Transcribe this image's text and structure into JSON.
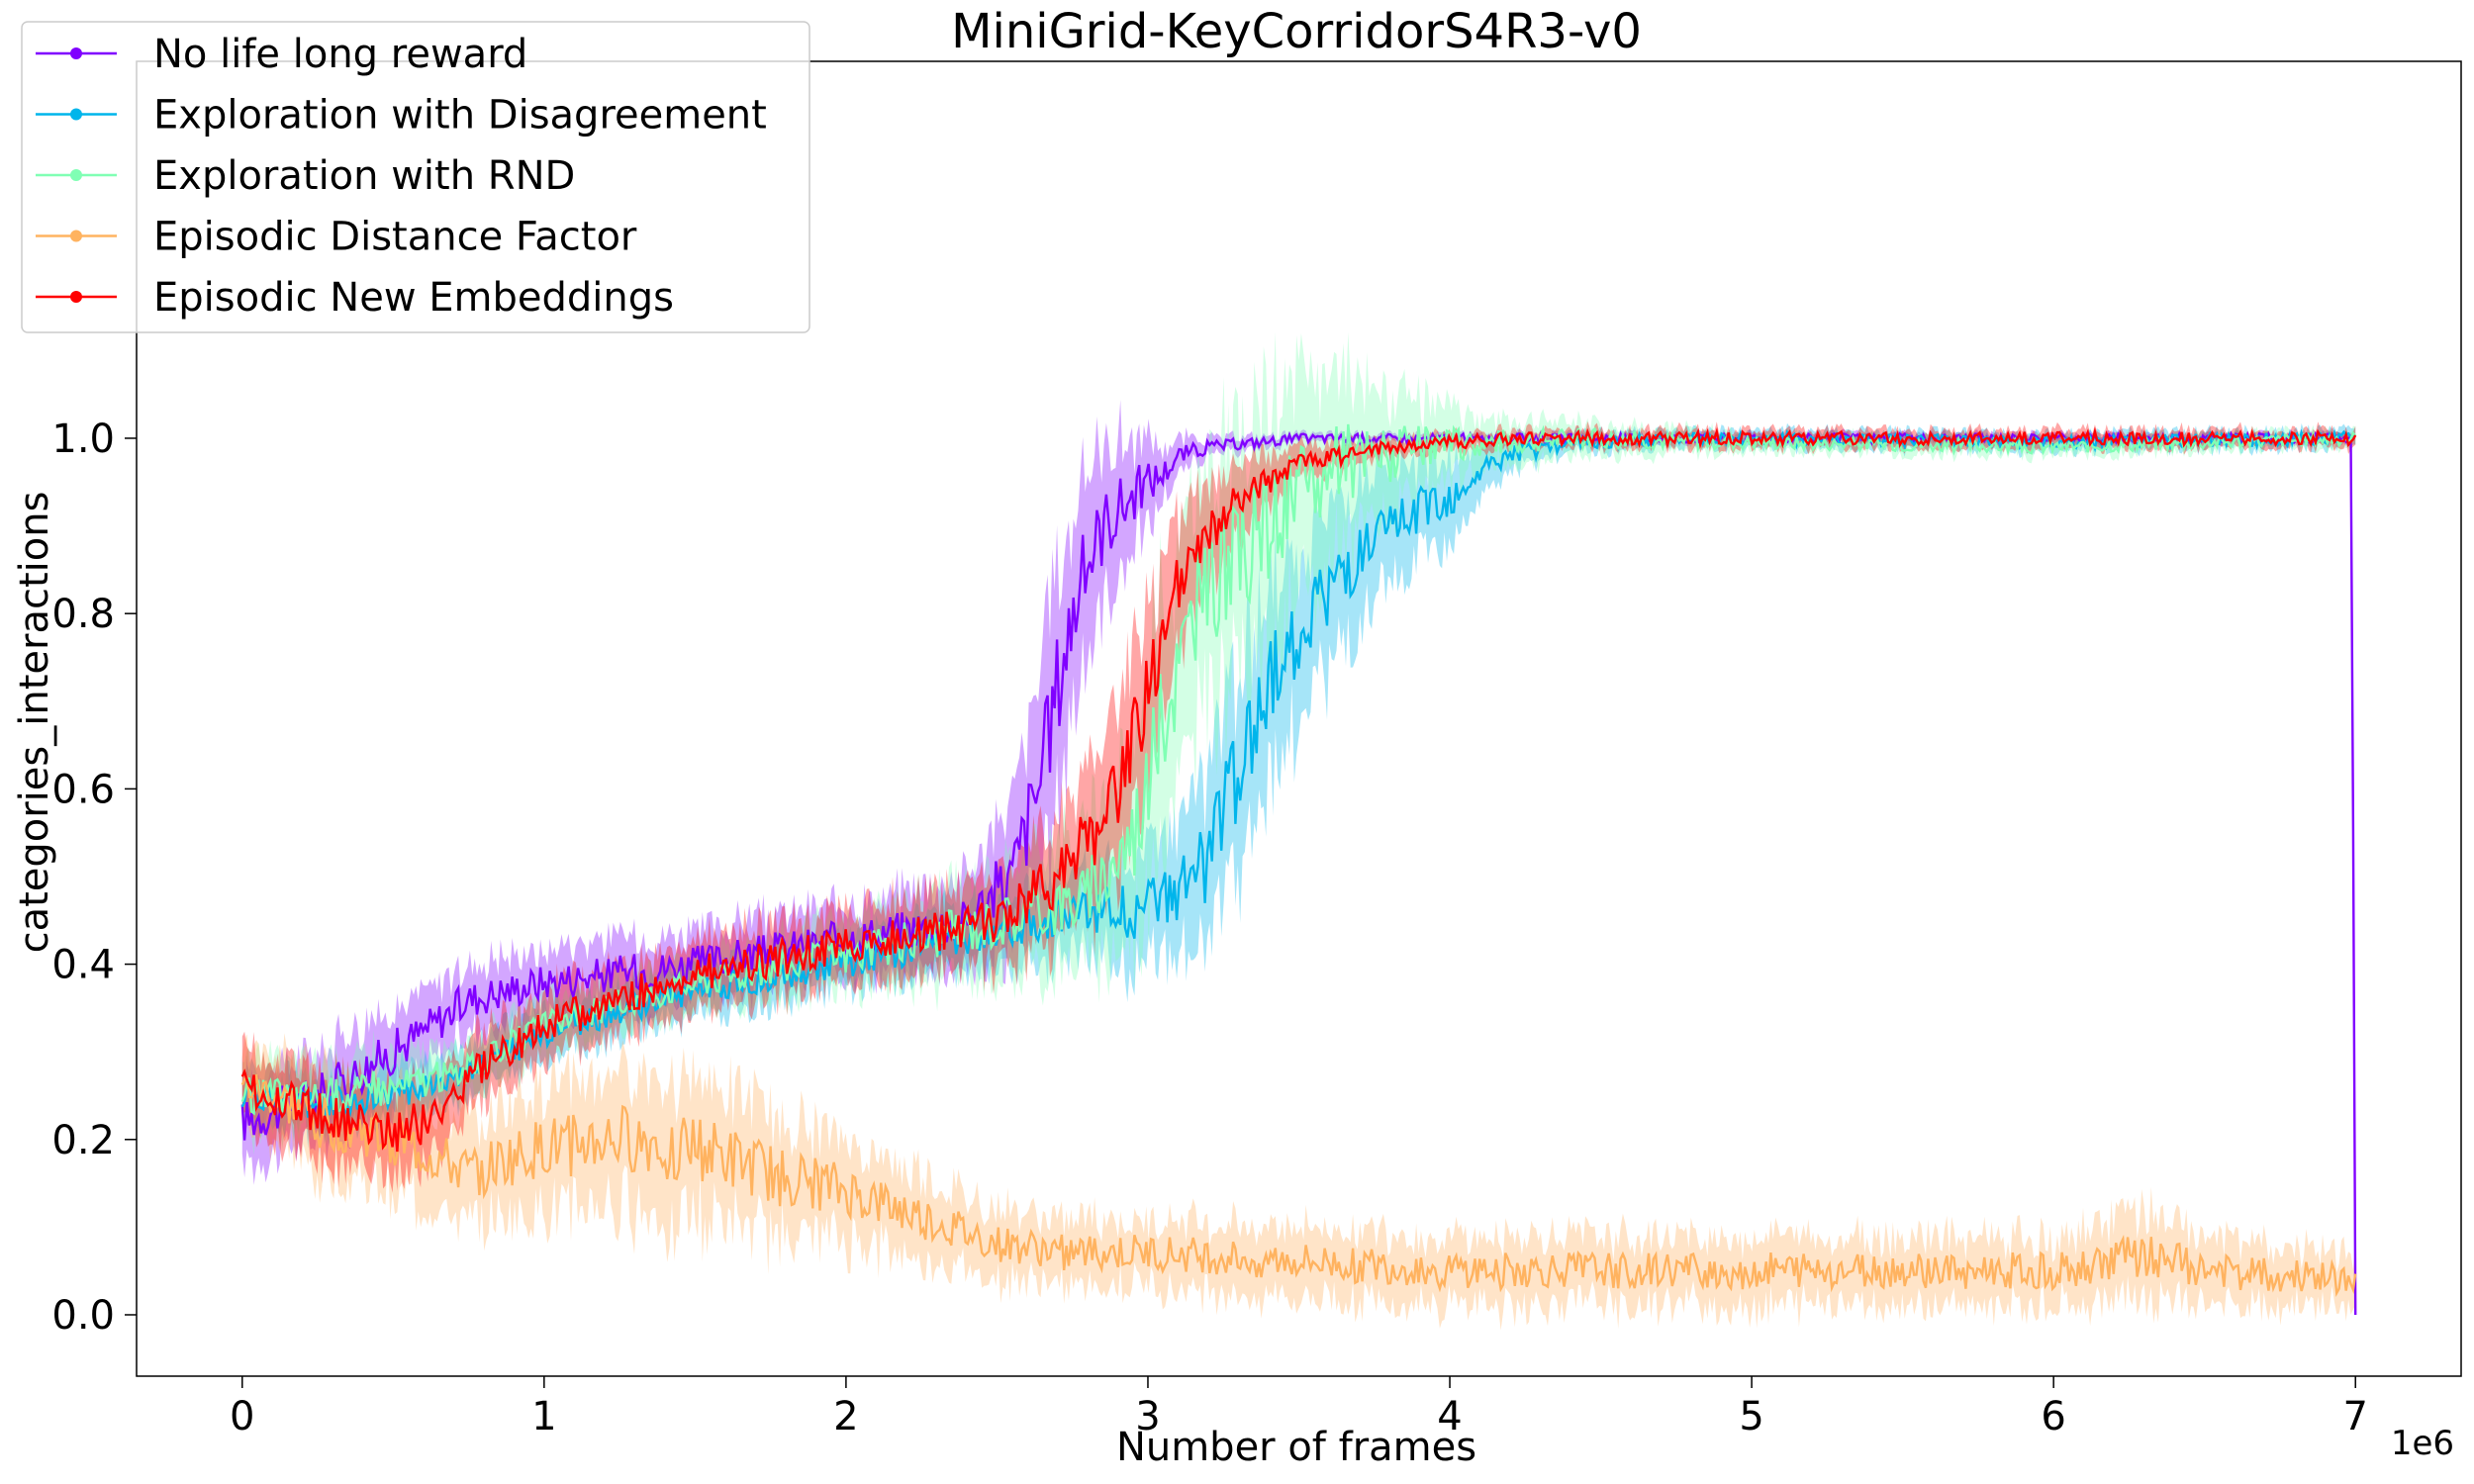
{
  "chart_data": {
    "type": "line",
    "title": "MiniGrid-KeyCorridorS4R3-v0",
    "xlabel": "Number of frames",
    "ylabel": "categories_interactions",
    "x_offset_label": "1e6",
    "xlim": [
      -0.35,
      7.35
    ],
    "ylim": [
      -0.07,
      1.43
    ],
    "x_ticks": [
      0,
      1,
      2,
      3,
      4,
      5,
      6,
      7
    ],
    "x_tick_labels": [
      "0",
      "1",
      "2",
      "3",
      "4",
      "5",
      "6",
      "7"
    ],
    "y_ticks": [
      0.0,
      0.2,
      0.4,
      0.6,
      0.8,
      1.0
    ],
    "y_tick_labels": [
      "0.0",
      "0.2",
      "0.4",
      "0.6",
      "0.8",
      "1.0"
    ],
    "grid": false,
    "legend_position": "top-left",
    "x_unit": "millions of frames",
    "series": [
      {
        "name": "No life long reward",
        "color": "#8000ff",
        "x": [
          0,
          0.25,
          0.5,
          0.75,
          1.0,
          1.5,
          2.0,
          2.4,
          2.55,
          2.65,
          2.7,
          2.75,
          2.8,
          2.85,
          2.9,
          3.0,
          3.05,
          3.1,
          3.2,
          3.5,
          4.0,
          5.0,
          6.0,
          6.99,
          6.995,
          7.0
        ],
        "values": [
          0.22,
          0.25,
          0.3,
          0.36,
          0.38,
          0.4,
          0.43,
          0.45,
          0.5,
          0.62,
          0.72,
          0.8,
          0.86,
          0.9,
          0.92,
          0.95,
          0.96,
          0.98,
          0.99,
          1.0,
          1.0,
          1.0,
          1.0,
          1.0,
          0.0,
          0.0
        ],
        "band": [
          0.05,
          0.05,
          0.05,
          0.04,
          0.04,
          0.04,
          0.04,
          0.05,
          0.09,
          0.12,
          0.14,
          0.12,
          0.1,
          0.09,
          0.08,
          0.05,
          0.03,
          0.02,
          0.01,
          0.005,
          0.005,
          0.005,
          0.005,
          0.005,
          0,
          0
        ]
      },
      {
        "name": "Exploration with Disagreement",
        "color": "#00b5eb",
        "x": [
          0,
          0.25,
          0.5,
          0.75,
          1.0,
          1.5,
          2.0,
          2.5,
          2.8,
          3.0,
          3.1,
          3.2,
          3.3,
          3.4,
          3.5,
          3.6,
          3.7,
          3.8,
          3.9,
          4.0,
          4.1,
          4.2,
          4.4,
          5.0,
          6.0,
          7.0
        ],
        "values": [
          0.25,
          0.24,
          0.25,
          0.28,
          0.32,
          0.37,
          0.4,
          0.44,
          0.46,
          0.46,
          0.48,
          0.52,
          0.62,
          0.72,
          0.78,
          0.83,
          0.86,
          0.89,
          0.92,
          0.93,
          0.96,
          0.98,
          0.995,
          1.0,
          0.995,
          1.0
        ],
        "band": [
          0.03,
          0.03,
          0.03,
          0.03,
          0.03,
          0.03,
          0.03,
          0.04,
          0.05,
          0.07,
          0.08,
          0.1,
          0.12,
          0.11,
          0.1,
          0.09,
          0.08,
          0.07,
          0.06,
          0.05,
          0.03,
          0.02,
          0.01,
          0.01,
          0.01,
          0.01
        ]
      },
      {
        "name": "Exploration with RND",
        "color": "#80ffb4",
        "x": [
          0,
          0.25,
          0.5,
          0.75,
          1.0,
          1.5,
          2.0,
          2.5,
          2.8,
          2.95,
          3.05,
          3.15,
          3.25,
          3.35,
          3.45,
          3.55,
          3.65,
          3.75,
          3.9,
          4.1,
          4.4,
          5.0,
          6.0,
          7.0
        ],
        "values": [
          0.25,
          0.25,
          0.26,
          0.28,
          0.33,
          0.38,
          0.41,
          0.45,
          0.48,
          0.55,
          0.68,
          0.8,
          0.85,
          0.88,
          0.92,
          0.95,
          0.97,
          0.98,
          0.99,
          0.995,
          1.0,
          0.995,
          0.99,
          1.0
        ],
        "band": [
          0.04,
          0.04,
          0.04,
          0.03,
          0.03,
          0.03,
          0.04,
          0.06,
          0.08,
          0.12,
          0.14,
          0.14,
          0.14,
          0.14,
          0.14,
          0.12,
          0.1,
          0.08,
          0.05,
          0.03,
          0.02,
          0.01,
          0.01,
          0.01
        ]
      },
      {
        "name": "Episodic Distance Factor",
        "color": "#ffb360",
        "x": [
          0,
          0.1,
          0.25,
          0.5,
          0.75,
          1.0,
          1.25,
          1.5,
          1.75,
          2.0,
          2.25,
          2.5,
          2.75,
          3.0,
          3.5,
          4.0,
          4.5,
          5.0,
          5.5,
          6.0,
          6.3,
          6.5,
          7.0
        ],
        "values": [
          0.26,
          0.25,
          0.22,
          0.2,
          0.16,
          0.19,
          0.2,
          0.19,
          0.16,
          0.14,
          0.11,
          0.08,
          0.07,
          0.07,
          0.06,
          0.05,
          0.05,
          0.05,
          0.05,
          0.05,
          0.07,
          0.05,
          0.04
        ],
        "band": [
          0.04,
          0.05,
          0.06,
          0.06,
          0.06,
          0.07,
          0.08,
          0.08,
          0.07,
          0.06,
          0.05,
          0.04,
          0.04,
          0.04,
          0.04,
          0.04,
          0.04,
          0.04,
          0.04,
          0.04,
          0.05,
          0.04,
          0.03
        ]
      },
      {
        "name": "Episodic New Embeddings",
        "color": "#ff0000",
        "x": [
          0,
          0.25,
          0.5,
          0.6,
          0.75,
          1.0,
          1.5,
          2.0,
          2.5,
          2.7,
          2.85,
          2.95,
          3.0,
          3.05,
          3.1,
          3.2,
          3.3,
          3.5,
          3.8,
          4.2,
          5.0,
          6.0,
          7.0
        ],
        "values": [
          0.26,
          0.23,
          0.21,
          0.22,
          0.27,
          0.33,
          0.39,
          0.42,
          0.45,
          0.5,
          0.56,
          0.65,
          0.72,
          0.78,
          0.83,
          0.89,
          0.93,
          0.97,
          0.99,
          1.0,
          1.0,
          1.0,
          1.0
        ],
        "band": [
          0.04,
          0.05,
          0.05,
          0.05,
          0.04,
          0.04,
          0.04,
          0.04,
          0.05,
          0.07,
          0.09,
          0.1,
          0.1,
          0.09,
          0.08,
          0.06,
          0.04,
          0.02,
          0.01,
          0.01,
          0.01,
          0.01,
          0.01
        ]
      }
    ]
  }
}
